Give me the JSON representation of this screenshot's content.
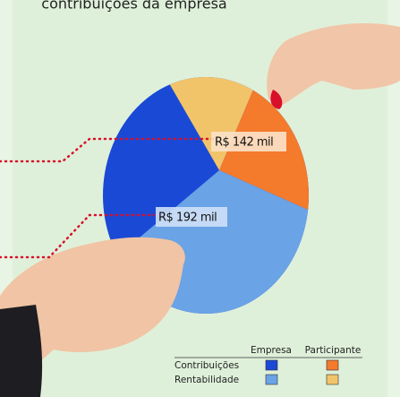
{
  "header": {
    "title": "contribuições da empresa"
  },
  "labels": [
    "R$ 142 mil",
    "R$ 192 mil"
  ],
  "legend": {
    "columns": [
      "Empresa",
      "Participante"
    ],
    "rows": [
      "Contribuições",
      "Rentabilidade"
    ]
  }
}
